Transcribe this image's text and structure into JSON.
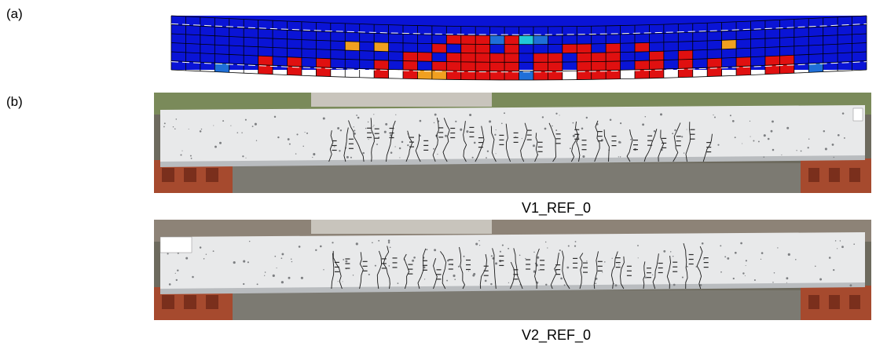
{
  "figure": {
    "panel_a": {
      "label": "(a)",
      "colors": {
        "background": "#0a14d6",
        "cracked": "#e01010",
        "yielding": "#f0a020",
        "light_blue": "#1f6fd8",
        "cyan": "#22c8d8",
        "grid": "#000000",
        "dash": "#ffffff"
      }
    },
    "panel_b": {
      "label": "(b)",
      "photos": [
        {
          "caption": "V1_REF_0",
          "icon": "beam-photo-icon"
        },
        {
          "caption": "V2_REF_0",
          "icon": "beam-photo-icon"
        }
      ]
    }
  }
}
